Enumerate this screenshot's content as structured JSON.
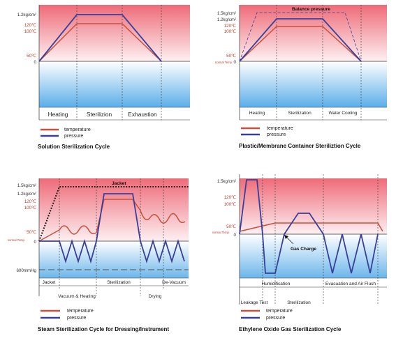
{
  "charts": [
    {
      "id": "solution",
      "title": "Solution Sterilization Cycle",
      "y_labels": {
        "p12": "1.2kg/cm²",
        "t120": "120℃",
        "t100": "100℃",
        "t50": "50℃",
        "zero": "0"
      },
      "phases": [
        "Heating",
        "Sterilizion",
        "Exhaustion"
      ],
      "legend": {
        "temperature": "temperature",
        "pressure": "pressure"
      }
    },
    {
      "id": "plastic",
      "title": "Plastic/Membrane Container Steriliztion Cycle",
      "annotation": "Balance pressure",
      "y_labels": {
        "p15": "1.5kg/cm²",
        "p12": "1.2kg/cm²",
        "t120": "120℃",
        "t100": "100℃",
        "t50": "50℃",
        "normal": "normal Temp",
        "zero": "0"
      },
      "phases": [
        "Heating",
        "Sterilization",
        "Water Cooling"
      ],
      "legend": {
        "temperature": "temperature",
        "pressure": "pressure"
      }
    },
    {
      "id": "steam",
      "title": "Steam Sterilization Cycle for Dressing/Instrument",
      "annotation": "Jacket",
      "y_labels": {
        "p15": "1.5kg/cm²",
        "p12": "1.2kg/cm²",
        "t120": "120℃",
        "t100": "100℃",
        "t50": "50℃",
        "normal": "normal Temp.",
        "zero": "0",
        "vac": "600mmHg"
      },
      "phases": [
        "Jacket",
        "Vacuum & Heating",
        "Sterilization",
        "Drying",
        "De-Vacuum"
      ],
      "legend": {
        "temperature": "temperature",
        "pressure": "pressure"
      }
    },
    {
      "id": "eo",
      "title": "Ethylene Oxide Gas Sterilization Cycle",
      "annotation": "Gas Charge",
      "y_labels": {
        "p15": "1.5kg/cm²",
        "t120": "120℃",
        "t100": "100℃",
        "t50": "50℃",
        "normal": "normal Temp.",
        "zero": "0"
      },
      "phases": [
        "Humidification",
        "Evacuation and Air Flush",
        "Leakage Test",
        "Sterilization"
      ],
      "legend": {
        "temperature": "temperature",
        "pressure": "pressure"
      }
    }
  ],
  "colors": {
    "temperature": "#c8503c",
    "pressure": "#3a3f9a"
  }
}
